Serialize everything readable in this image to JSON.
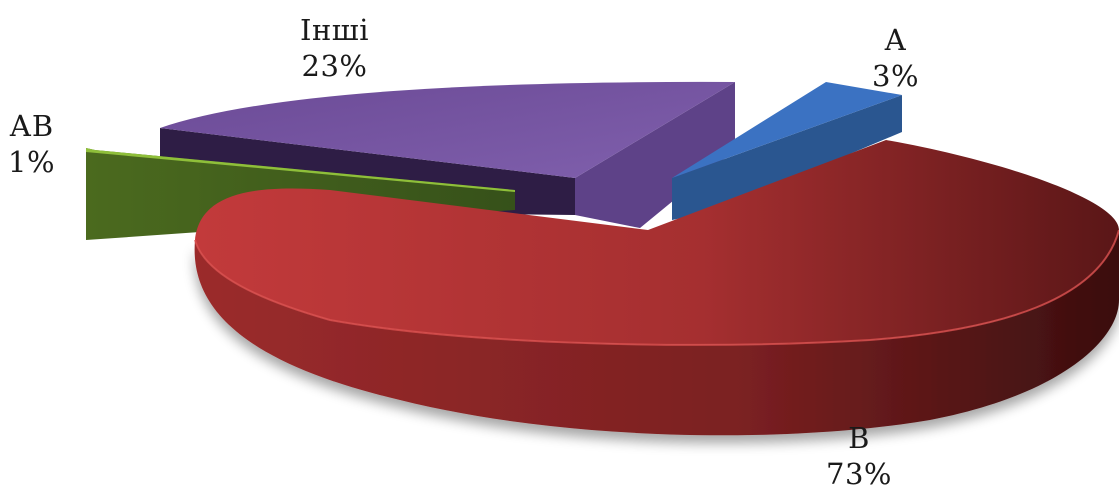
{
  "chart_data": {
    "type": "pie",
    "title": "",
    "categories": [
      "В",
      "Інші",
      "АВ",
      "А"
    ],
    "values": [
      73,
      23,
      1,
      3
    ],
    "value_labels": [
      "73%",
      "23%",
      "1%",
      "3%"
    ],
    "colors": [
      "#c0393a",
      "#7e5aa6",
      "#6b8e23",
      "#3b6fbf"
    ],
    "legend": "none",
    "style": "3d-exploded"
  }
}
